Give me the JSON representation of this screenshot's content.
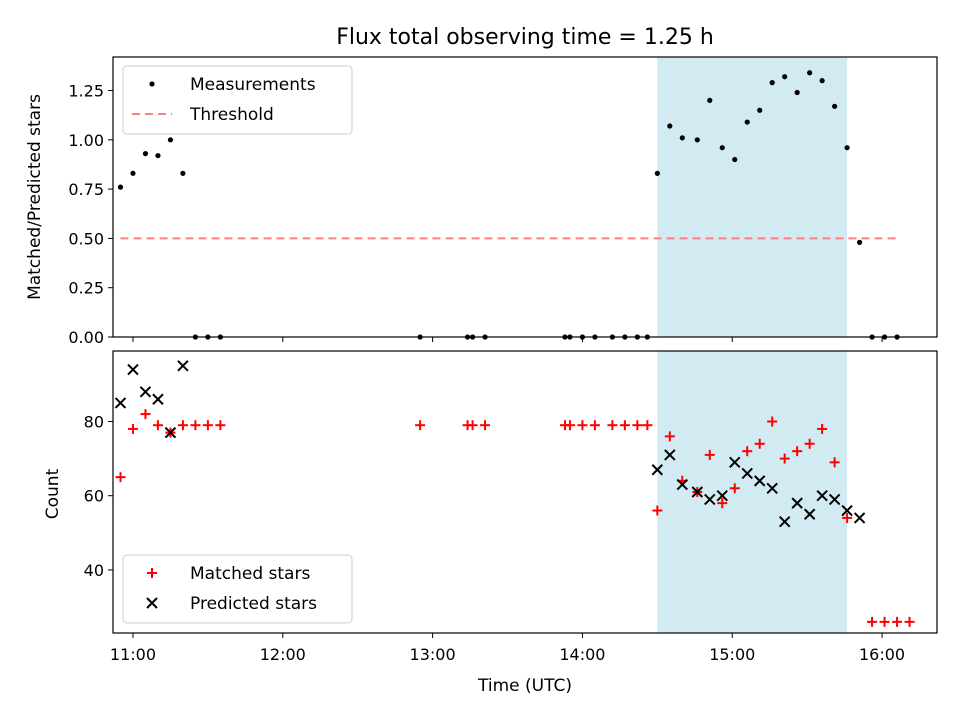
{
  "chart_data": [
    {
      "type": "scatter",
      "title": "Flux total observing time = 1.25 h",
      "ylabel": "Matched/Predicted stars",
      "xlim": [
        "10:52",
        "16:22"
      ],
      "ylim": [
        0.0,
        1.42
      ],
      "yticks": [
        0.0,
        0.25,
        0.5,
        0.75,
        1.0,
        1.25
      ],
      "ytick_labels": [
        "0.00",
        "0.25",
        "0.50",
        "0.75",
        "1.00",
        "1.25"
      ],
      "shaded_span": {
        "x_start": "14:30",
        "x_end": "15:46",
        "color": "#add8e6"
      },
      "legend": {
        "location": "upper-left",
        "entries": [
          "Measurements",
          "Threshold"
        ]
      },
      "series": [
        {
          "name": "Measurements",
          "marker": "dot",
          "color": "#000000",
          "points": [
            [
              "10:55",
              0.76
            ],
            [
              "11:00",
              0.83
            ],
            [
              "11:05",
              0.93
            ],
            [
              "11:10",
              0.92
            ],
            [
              "11:15",
              1.0
            ],
            [
              "11:20",
              0.83
            ],
            [
              "11:25",
              0.0
            ],
            [
              "11:30",
              0.0
            ],
            [
              "11:35",
              0.0
            ],
            [
              "12:55",
              0.0
            ],
            [
              "13:14",
              0.0
            ],
            [
              "13:16",
              0.0
            ],
            [
              "13:21",
              0.0
            ],
            [
              "13:53",
              0.0
            ],
            [
              "13:55",
              0.0
            ],
            [
              "14:00",
              0.0
            ],
            [
              "14:05",
              0.0
            ],
            [
              "14:12",
              0.0
            ],
            [
              "14:17",
              0.0
            ],
            [
              "14:22",
              0.0
            ],
            [
              "14:26",
              0.0
            ],
            [
              "14:30",
              0.83
            ],
            [
              "14:35",
              1.07
            ],
            [
              "14:40",
              1.01
            ],
            [
              "14:46",
              1.0
            ],
            [
              "14:51",
              1.2
            ],
            [
              "14:56",
              0.96
            ],
            [
              "15:01",
              0.9
            ],
            [
              "15:06",
              1.09
            ],
            [
              "15:11",
              1.15
            ],
            [
              "15:16",
              1.29
            ],
            [
              "15:21",
              1.32
            ],
            [
              "15:26",
              1.24
            ],
            [
              "15:31",
              1.34
            ],
            [
              "15:36",
              1.3
            ],
            [
              "15:41",
              1.17
            ],
            [
              "15:46",
              0.96
            ],
            [
              "15:51",
              0.48
            ],
            [
              "15:56",
              0.0
            ],
            [
              "16:01",
              0.0
            ],
            [
              "16:06",
              0.0
            ]
          ]
        },
        {
          "name": "Threshold",
          "style": "dashed",
          "color": "#ff7f7f",
          "points": [
            [
              "10:55",
              0.5
            ],
            [
              "16:06",
              0.5
            ]
          ]
        }
      ]
    },
    {
      "type": "scatter",
      "xlabel": "Time (UTC)",
      "ylabel": "Count",
      "xlim": [
        "10:52",
        "16:22"
      ],
      "ylim": [
        23,
        99
      ],
      "yticks": [
        40,
        60,
        80
      ],
      "ytick_labels": [
        "40",
        "60",
        "80"
      ],
      "xticks": [
        "11:00",
        "12:00",
        "13:00",
        "14:00",
        "15:00",
        "16:00"
      ],
      "shaded_span": {
        "x_start": "14:30",
        "x_end": "15:46",
        "color": "#add8e6"
      },
      "legend": {
        "location": "lower-left",
        "entries": [
          "Matched stars",
          "Predicted stars"
        ]
      },
      "series": [
        {
          "name": "Matched stars",
          "marker": "plus",
          "color": "#ff0000",
          "points": [
            [
              "10:55",
              65
            ],
            [
              "11:00",
              78
            ],
            [
              "11:05",
              82
            ],
            [
              "11:10",
              79
            ],
            [
              "11:15",
              77
            ],
            [
              "11:20",
              79
            ],
            [
              "11:25",
              79
            ],
            [
              "11:30",
              79
            ],
            [
              "11:35",
              79
            ],
            [
              "12:55",
              79
            ],
            [
              "13:14",
              79
            ],
            [
              "13:16",
              79
            ],
            [
              "13:21",
              79
            ],
            [
              "13:53",
              79
            ],
            [
              "13:55",
              79
            ],
            [
              "14:00",
              79
            ],
            [
              "14:05",
              79
            ],
            [
              "14:12",
              79
            ],
            [
              "14:17",
              79
            ],
            [
              "14:22",
              79
            ],
            [
              "14:26",
              79
            ],
            [
              "14:30",
              56
            ],
            [
              "14:35",
              76
            ],
            [
              "14:40",
              64
            ],
            [
              "14:46",
              61
            ],
            [
              "14:51",
              71
            ],
            [
              "14:56",
              58
            ],
            [
              "15:01",
              62
            ],
            [
              "15:06",
              72
            ],
            [
              "15:11",
              74
            ],
            [
              "15:16",
              80
            ],
            [
              "15:21",
              70
            ],
            [
              "15:26",
              72
            ],
            [
              "15:31",
              74
            ],
            [
              "15:36",
              78
            ],
            [
              "15:41",
              69
            ],
            [
              "15:46",
              54
            ],
            [
              "15:56",
              26
            ],
            [
              "16:01",
              26
            ],
            [
              "16:06",
              26
            ],
            [
              "16:11",
              26
            ]
          ]
        },
        {
          "name": "Predicted stars",
          "marker": "x",
          "color": "#000000",
          "points": [
            [
              "10:55",
              85
            ],
            [
              "11:00",
              94
            ],
            [
              "11:05",
              88
            ],
            [
              "11:10",
              86
            ],
            [
              "11:15",
              77
            ],
            [
              "11:20",
              95
            ],
            [
              "14:30",
              67
            ],
            [
              "14:35",
              71
            ],
            [
              "14:40",
              63
            ],
            [
              "14:46",
              61
            ],
            [
              "14:51",
              59
            ],
            [
              "14:56",
              60
            ],
            [
              "15:01",
              69
            ],
            [
              "15:06",
              66
            ],
            [
              "15:11",
              64
            ],
            [
              "15:16",
              62
            ],
            [
              "15:21",
              53
            ],
            [
              "15:26",
              58
            ],
            [
              "15:31",
              55
            ],
            [
              "15:36",
              60
            ],
            [
              "15:41",
              59
            ],
            [
              "15:46",
              56
            ],
            [
              "15:51",
              54
            ]
          ]
        }
      ]
    }
  ]
}
